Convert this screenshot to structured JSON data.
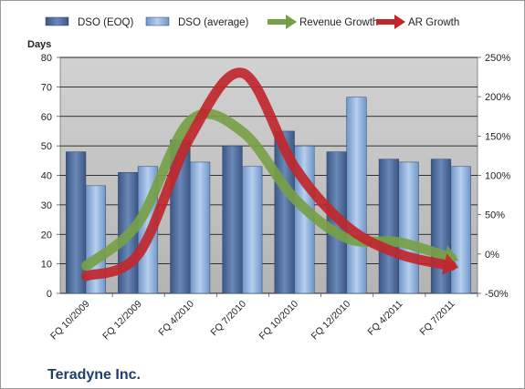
{
  "chart_data": {
    "type": "bar",
    "categories": [
      "FQ 10/2009",
      "FQ 12/2009",
      "FQ 4/2010",
      "FQ 7/2010",
      "FQ 10/2010",
      "FQ 12/2010",
      "FQ 4/2011",
      "FQ 7/2011"
    ],
    "series": [
      {
        "name": "DSO (EOQ)",
        "type": "bar",
        "axis": "left",
        "color": "#4f6d9e",
        "values": [
          48,
          41,
          52,
          50,
          55,
          48,
          45.5,
          45.5
        ]
      },
      {
        "name": "DSO (average)",
        "type": "bar",
        "axis": "left",
        "color": "#8fb3de",
        "values": [
          36.5,
          43,
          44.5,
          43,
          50,
          66.5,
          44.5,
          43
        ]
      },
      {
        "name": "Revenue Growth",
        "type": "line",
        "axis": "right",
        "unit": "%",
        "color": "#77a046",
        "values": [
          -15,
          40,
          170,
          155,
          70,
          20,
          15,
          -5
        ]
      },
      {
        "name": "AR Growth",
        "type": "line",
        "axis": "right",
        "unit": "%",
        "color": "#c0272d",
        "values": [
          -28,
          0,
          150,
          230,
          110,
          35,
          0,
          -15
        ]
      }
    ],
    "ylabel": "Days",
    "ylim": [
      0,
      80
    ],
    "yticks": [
      0,
      10,
      20,
      30,
      40,
      50,
      60,
      70,
      80
    ],
    "y2lim": [
      -50,
      250
    ],
    "y2ticks": [
      "-50%",
      "0%",
      "50%",
      "100%",
      "150%",
      "200%",
      "250%"
    ],
    "legend_position": "top",
    "grid": true
  },
  "footer": {
    "company": "Teradyne Inc."
  },
  "colors": {
    "plot_background": "#c0c0c0",
    "gridline": "#000000"
  }
}
